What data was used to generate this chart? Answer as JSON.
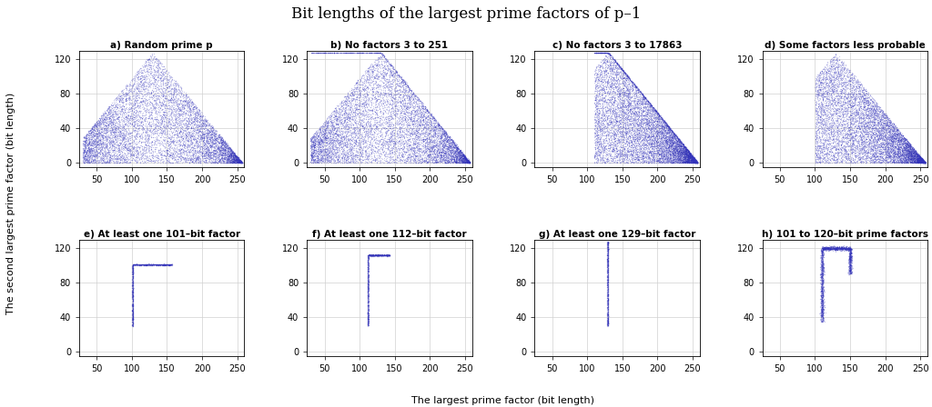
{
  "title": "Bit lengths of the largest prime factors of p–1",
  "xlabel": "The largest prime factor (bit length)",
  "ylabel": "The second largest prime factor (bit length)",
  "xlim": [
    25,
    260
  ],
  "ylim": [
    -5,
    130
  ],
  "xticks": [
    50,
    100,
    150,
    200,
    250
  ],
  "yticks": [
    0,
    40,
    80,
    120
  ],
  "subplot_titles": [
    "a) Random prime p",
    "b) No factors 3 to 251",
    "c) No factors 3 to 17863",
    "d) Some factors less probable",
    "e) At least one 101–bit factor",
    "f) At least one 112–bit factor",
    "g) At least one 129–bit factor",
    "h) 101 to 120–bit prime factors"
  ],
  "dot_color": "#3333bb",
  "dot_alpha": 0.25,
  "dot_size": 0.8,
  "n_points": 10000,
  "seed": 42,
  "total_bits": 258
}
